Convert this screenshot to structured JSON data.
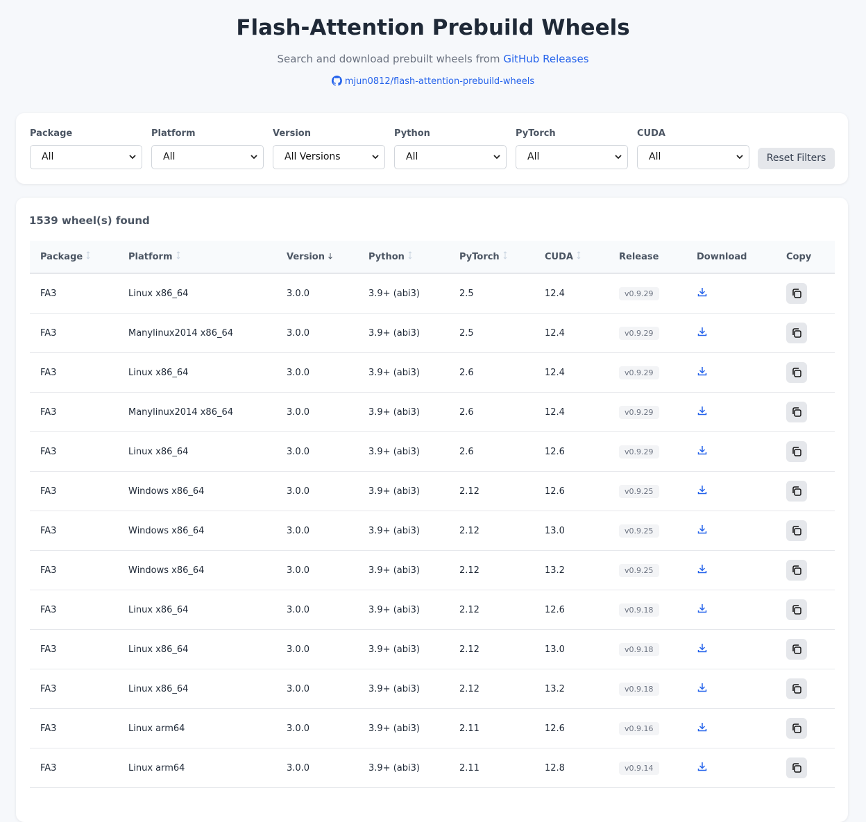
{
  "header": {
    "title": "Flash-Attention Prebuild Wheels",
    "subtitle": "Search and download prebuilt wheels from",
    "subtitle_link": "GitHub Releases",
    "repo": "mjun0812/flash-attention-prebuild-wheels"
  },
  "filters": [
    {
      "label": "Package",
      "value": "All"
    },
    {
      "label": "Platform",
      "value": "All"
    },
    {
      "label": "Version",
      "value": "All Versions"
    },
    {
      "label": "Python",
      "value": "All"
    },
    {
      "label": "PyTorch",
      "value": "All"
    },
    {
      "label": "CUDA",
      "value": "All"
    }
  ],
  "reset": "Reset Filters",
  "results": {
    "count_text": "1539 wheel(s) found"
  },
  "table": {
    "columns": [
      "Package",
      "Platform",
      "Version",
      "Python",
      "PyTorch",
      "CUDA",
      "Release",
      "Download",
      "Copy"
    ],
    "rows": [
      [
        "FA3",
        "Linux x86_64",
        "3.0.0",
        "3.9+ (abi3)",
        "2.5",
        "12.4",
        "v0.9.29"
      ],
      [
        "FA3",
        "Manylinux2014 x86_64",
        "3.0.0",
        "3.9+ (abi3)",
        "2.5",
        "12.4",
        "v0.9.29"
      ],
      [
        "FA3",
        "Linux x86_64",
        "3.0.0",
        "3.9+ (abi3)",
        "2.6",
        "12.4",
        "v0.9.29"
      ],
      [
        "FA3",
        "Manylinux2014 x86_64",
        "3.0.0",
        "3.9+ (abi3)",
        "2.6",
        "12.4",
        "v0.9.29"
      ],
      [
        "FA3",
        "Linux x86_64",
        "3.0.0",
        "3.9+ (abi3)",
        "2.6",
        "12.6",
        "v0.9.29"
      ],
      [
        "FA3",
        "Windows x86_64",
        "3.0.0",
        "3.9+ (abi3)",
        "2.12",
        "12.6",
        "v0.9.25"
      ],
      [
        "FA3",
        "Windows x86_64",
        "3.0.0",
        "3.9+ (abi3)",
        "2.12",
        "13.0",
        "v0.9.25"
      ],
      [
        "FA3",
        "Windows x86_64",
        "3.0.0",
        "3.9+ (abi3)",
        "2.12",
        "13.2",
        "v0.9.25"
      ],
      [
        "FA3",
        "Linux x86_64",
        "3.0.0",
        "3.9+ (abi3)",
        "2.12",
        "12.6",
        "v0.9.18"
      ],
      [
        "FA3",
        "Linux x86_64",
        "3.0.0",
        "3.9+ (abi3)",
        "2.12",
        "13.0",
        "v0.9.18"
      ],
      [
        "FA3",
        "Linux x86_64",
        "3.0.0",
        "3.9+ (abi3)",
        "2.12",
        "13.2",
        "v0.9.18"
      ],
      [
        "FA3",
        "Linux arm64",
        "3.0.0",
        "3.9+ (abi3)",
        "2.11",
        "12.6",
        "v0.9.16"
      ],
      [
        "FA3",
        "Linux arm64",
        "3.0.0",
        "3.9+ (abi3)",
        "2.11",
        "12.8",
        "v0.9.14"
      ]
    ]
  }
}
